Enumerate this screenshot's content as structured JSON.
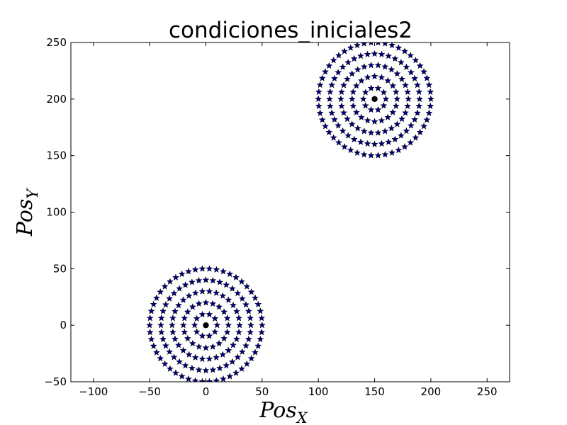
{
  "chart_data": {
    "type": "scatter",
    "title": "condiciones_iniciales2",
    "xlabel": {
      "base": "Pos",
      "sub": "X"
    },
    "ylabel": {
      "base": "Pos",
      "sub": "Y"
    },
    "xlim": [
      -120,
      270
    ],
    "ylim": [
      -50,
      250
    ],
    "x_ticks": [
      -100,
      -50,
      0,
      50,
      100,
      150,
      200,
      250
    ],
    "y_ticks": [
      -50,
      0,
      50,
      100,
      150,
      200,
      250
    ],
    "x_tick_labels": [
      "−100",
      "−50",
      "0",
      "50",
      "100",
      "150",
      "200",
      "250"
    ],
    "y_tick_labels": [
      "−50",
      "0",
      "50",
      "100",
      "150",
      "200",
      "250"
    ],
    "grid": false,
    "star_color": "#00007f",
    "center_color": "#000000",
    "clusters": [
      {
        "center": [
          0,
          0
        ],
        "rings": [
          {
            "radius": 10,
            "count": 10
          },
          {
            "radius": 20,
            "count": 20
          },
          {
            "radius": 30,
            "count": 30
          },
          {
            "radius": 40,
            "count": 40
          },
          {
            "radius": 50,
            "count": 50
          }
        ]
      },
      {
        "center": [
          150,
          200
        ],
        "rings": [
          {
            "radius": 10,
            "count": 10
          },
          {
            "radius": 20,
            "count": 20
          },
          {
            "radius": 30,
            "count": 30
          },
          {
            "radius": 40,
            "count": 40
          },
          {
            "radius": 50,
            "count": 50
          }
        ]
      }
    ]
  }
}
